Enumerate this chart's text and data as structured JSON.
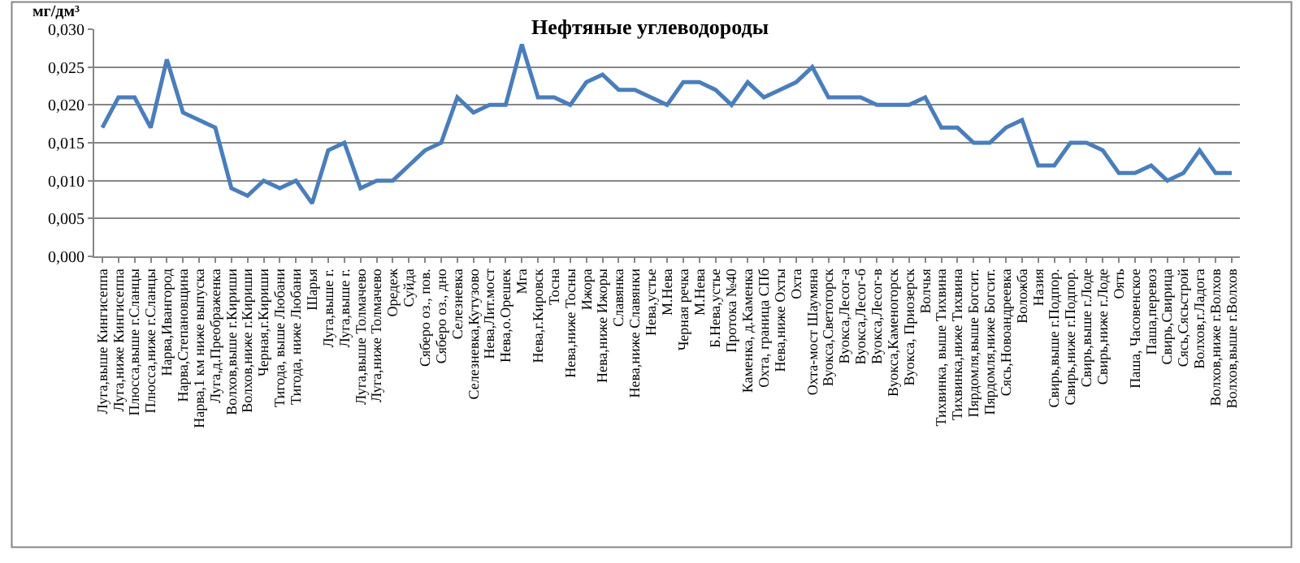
{
  "chart_data": {
    "type": "line",
    "title": "Нефтяные углеводороды",
    "ylabel": "мг/дм³",
    "categories": [
      "Луга,выше Кингисеппа",
      "Луга,ниже Кингисеппа",
      "Плюсса,выше г.Сланцы",
      "Плюсса,ниже г.Сланцы",
      "Нарва,Ивангород",
      "Нарва,Степановщина",
      "Нарва,1 км ниже выпуска",
      "Луга,д.Преображенка",
      "Волхов,выше г.Кириши",
      "Волхов,ниже г.Кириши",
      "Черная,г.Кириши",
      "Тигода, выше Любани",
      "Тигода, ниже Любани",
      "Шарья",
      "Луга,выше г.",
      "Луга,выше г.",
      "Луга,выше Толмачево",
      "Луга,ниже Толмачево",
      "Оредеж",
      "Суйда",
      "Сяберо оз., пов.",
      "Сяберо оз., дно",
      "Селезневка",
      "Селезневка,Кутузово",
      "Нева,Лит.мост",
      "Нева,о.Орешек",
      "Мга",
      "Нева,г.Кировск",
      "Тосна",
      "Нева,ниже Тосны",
      "Ижора",
      "Нева,ниже Ижоры",
      "Славянка",
      "Нева,ниже Славянки",
      "Нева,устье",
      "М.Нева",
      "Черная речка",
      "М.Нева",
      "Б.Нева,устье",
      "Протока №40",
      "Каменка, д.Каменка",
      "Охта, граница СПб",
      "Нева,ниже Охты",
      "Охта",
      "Охта-мост Шаумяна",
      "Вуокса,Светогорск",
      "Вуокса,Лесог-а",
      "Вуокса,Лесог-б",
      "Вуокса,Лесог-в",
      "Вуокса,Каменогорск",
      "Вуокса, Приозерск",
      "Волчья",
      "Тихвинка, выше Тихвина",
      "Тихвинка,ниже Тихвина",
      "Пярдомля,выше Богсит.",
      "Пярдомля,ниже Богсит.",
      "Сясь,Новоандреевка",
      "Воложба",
      "Назия",
      "Свирь,выше г.Подпор.",
      "Свирь,ниже г.Подпор.",
      "Свирь,выше г.Лоде",
      "Свирь,ниже г.Лоде",
      "Оять",
      "Паша, Часовенское",
      "Паша,перевоз",
      "Свирь,Свирица",
      "Сясь,Сясьстрой",
      "Волхов,г.Ладога",
      "Волхов,ниже г.Волхов",
      "Волхов,выше г.Волхов"
    ],
    "series": [
      {
        "color": "#4a7ebb",
        "values": [
          0.017,
          0.021,
          0.021,
          0.017,
          0.026,
          0.019,
          0.018,
          0.017,
          0.009,
          0.008,
          0.01,
          0.009,
          0.01,
          0.007,
          0.014,
          0.015,
          0.009,
          0.01,
          0.01,
          0.012,
          0.014,
          0.015,
          0.021,
          0.019,
          0.02,
          0.02,
          0.028,
          0.021,
          0.021,
          0.02,
          0.023,
          0.024,
          0.022,
          0.022,
          0.021,
          0.02,
          0.023,
          0.023,
          0.022,
          0.02,
          0.023,
          0.021,
          0.022,
          0.023,
          0.025,
          0.021,
          0.021,
          0.021,
          0.02,
          0.02,
          0.02,
          0.021,
          0.017,
          0.017,
          0.015,
          0.015,
          0.017,
          0.018,
          0.012,
          0.012,
          0.015,
          0.015,
          0.014,
          0.011,
          0.011,
          0.012,
          0.01,
          0.011,
          0.014,
          0.011,
          0.011
        ]
      }
    ],
    "ylim": [
      0,
      0.03
    ],
    "yticks": [
      {
        "value": 0,
        "label": "0,000"
      },
      {
        "value": 0.005,
        "label": "0,005"
      },
      {
        "value": 0.01,
        "label": "0,010"
      },
      {
        "value": 0.015,
        "label": "0,015"
      },
      {
        "value": 0.02,
        "label": "0,020"
      },
      {
        "value": 0.025,
        "label": "0,025"
      },
      {
        "value": 0.03,
        "label": "0,030"
      }
    ],
    "grid": "y",
    "marker": "none",
    "line_style": "solid"
  }
}
